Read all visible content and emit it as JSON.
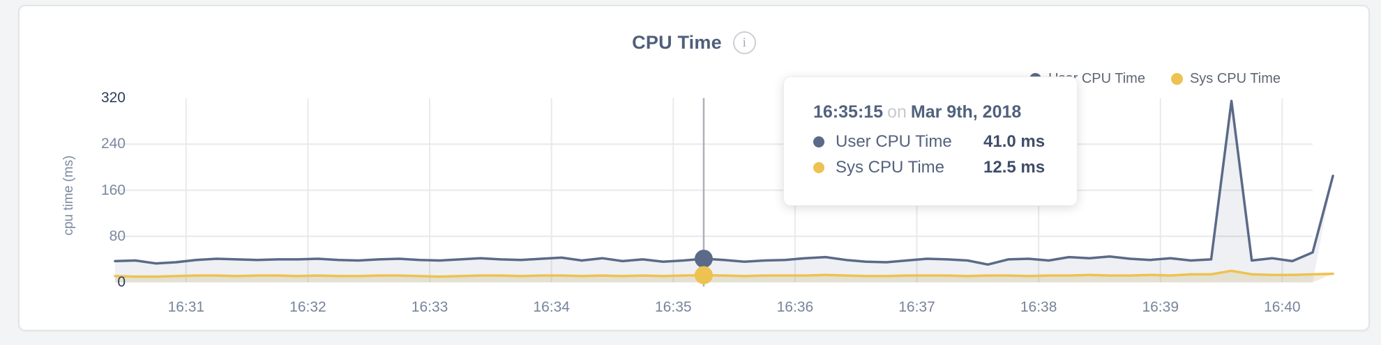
{
  "card": {
    "title": "CPU Time",
    "info_icon_glyph": "i"
  },
  "legend": [
    {
      "label": "User CPU Time",
      "color": "#5a6a88"
    },
    {
      "label": "Sys CPU Time",
      "color": "#eec250"
    }
  ],
  "tooltip": {
    "time": "16:35:15",
    "connector": "on",
    "date": "Mar 9th, 2018",
    "rows": [
      {
        "label": "User CPU Time",
        "value": "41.0 ms",
        "color": "#5a6a88"
      },
      {
        "label": "Sys CPU Time",
        "value": "12.5 ms",
        "color": "#eec250"
      }
    ]
  },
  "chart_data": {
    "type": "area",
    "title": "CPU Time",
    "ylabel": "cpu time (ms)",
    "ylim": [
      0,
      320
    ],
    "y_ticks": [
      0,
      80,
      160,
      240,
      320
    ],
    "x_ticks": [
      "16:31",
      "16:32",
      "16:33",
      "16:34",
      "16:35",
      "16:36",
      "16:37",
      "16:38",
      "16:39",
      "16:40"
    ],
    "date": "Mar 9th, 2018",
    "start_time": "16:30:25",
    "end_time": "16:40:15",
    "interval_seconds": 10,
    "grid": true,
    "legend_position": "top-right",
    "series": [
      {
        "name": "User CPU Time",
        "color": "#5a6a88",
        "fill": "rgba(90,106,136,0.10)",
        "unit": "ms",
        "values": [
          37,
          38,
          33,
          35,
          39,
          41,
          40,
          39,
          40,
          40,
          41,
          39,
          38,
          40,
          41,
          39,
          38,
          40,
          42,
          40,
          39,
          41,
          43,
          38,
          42,
          37,
          40,
          36,
          38,
          41,
          39,
          36,
          38,
          39,
          42,
          44,
          39,
          36,
          35,
          38,
          41,
          40,
          38,
          31,
          40,
          41,
          38,
          44,
          42,
          45,
          41,
          39,
          42,
          38,
          40,
          315,
          38,
          42,
          37,
          52,
          185
        ]
      },
      {
        "name": "Sys CPU Time",
        "color": "#eec250",
        "fill": "rgba(205,185,130,0.28)",
        "unit": "ms",
        "values": [
          11,
          10,
          10,
          11,
          12,
          12,
          11,
          12,
          12,
          11,
          12,
          11,
          11,
          12,
          12,
          11,
          10,
          11,
          12,
          12,
          11,
          12,
          12,
          11,
          12,
          11,
          12,
          11,
          12,
          12.5,
          12,
          11,
          12,
          12,
          12,
          13,
          12,
          11,
          11,
          12,
          12,
          12,
          11,
          12,
          12,
          11,
          12,
          12,
          13,
          12,
          12,
          13,
          12,
          14,
          14,
          20,
          14,
          13,
          13,
          14,
          15
        ]
      }
    ],
    "hover": {
      "index": 29,
      "time": "16:35:15",
      "user_ms": 41.0,
      "sys_ms": 12.5
    }
  }
}
